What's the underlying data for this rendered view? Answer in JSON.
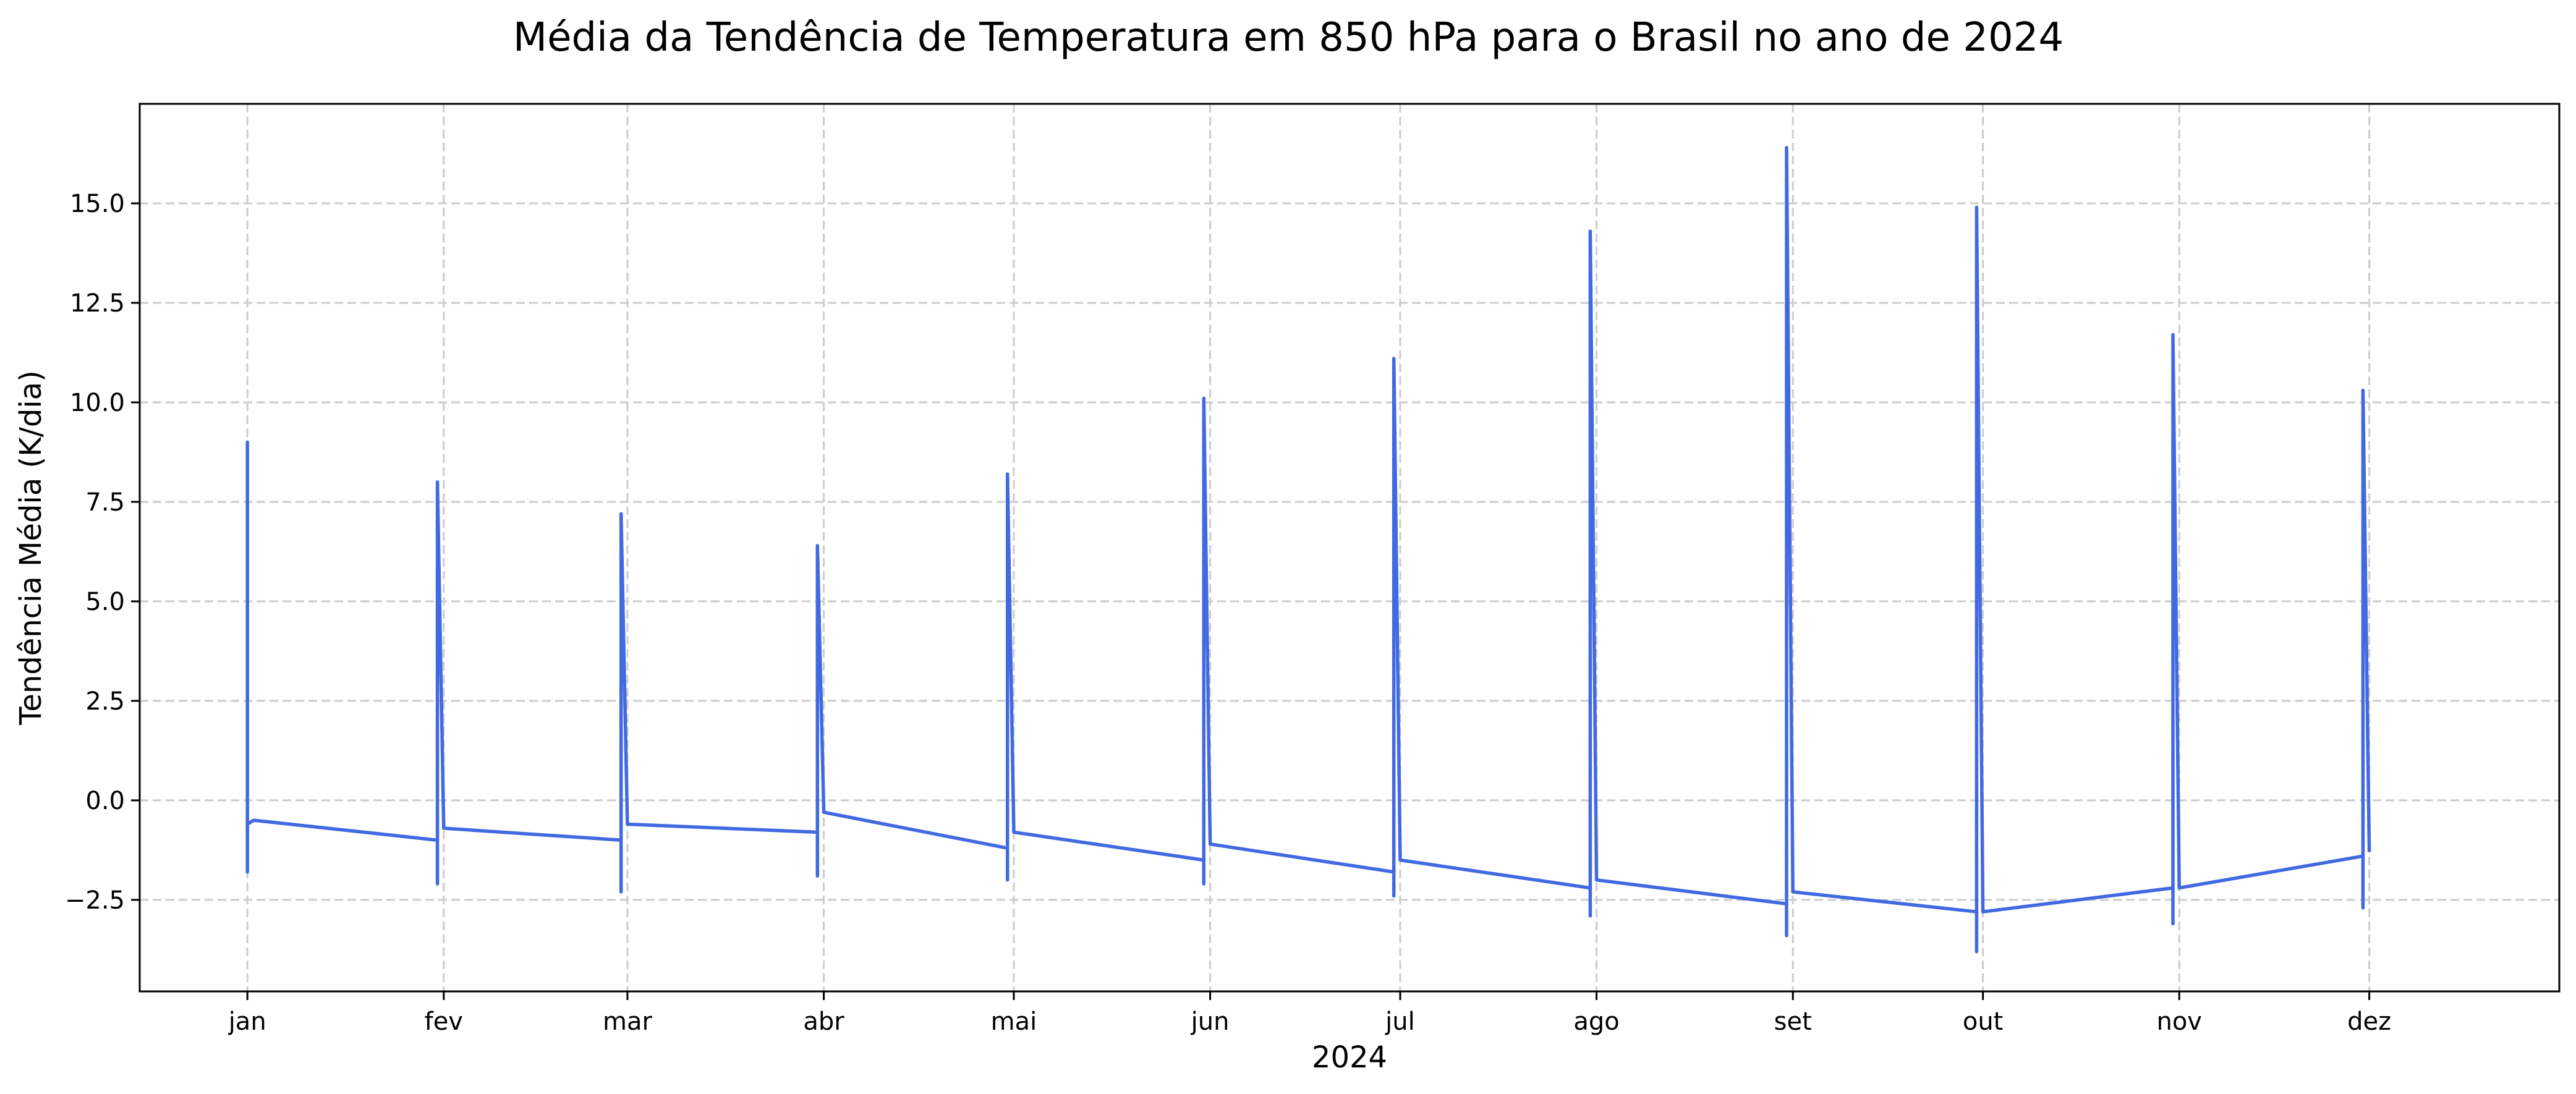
{
  "chart_data": {
    "type": "line",
    "title": "Média da Tendência de Temperatura em 850 hPa para o Brasil no ano de 2024",
    "xlabel": "2024",
    "ylabel": "Tendência Média (K/dia)",
    "xlim": [
      "2023-12-15",
      "2024-12-31"
    ],
    "ylim": [
      -4.8,
      17.5
    ],
    "yticks": [
      -2.5,
      0.0,
      2.5,
      5.0,
      7.5,
      10.0,
      12.5,
      15.0
    ],
    "ytick_labels": [
      "−2.5",
      "0.0",
      "2.5",
      "5.0",
      "7.5",
      "10.0",
      "12.5",
      "15.0"
    ],
    "xticks": [
      "2024-01-01",
      "2024-02-01",
      "2024-03-01",
      "2024-04-01",
      "2024-05-01",
      "2024-06-01",
      "2024-07-01",
      "2024-08-01",
      "2024-09-01",
      "2024-10-01",
      "2024-11-01",
      "2024-12-01"
    ],
    "xtick_labels": [
      "jan",
      "fev",
      "mar",
      "abr",
      "mai",
      "jun",
      "jul",
      "ago",
      "set",
      "out",
      "nov",
      "dez"
    ],
    "grid": true,
    "legend": "none",
    "series": [
      {
        "color": "#4169e1",
        "points": [
          [
            "2024-01-01",
            -0.8
          ],
          [
            "2024-01-01",
            -1.8
          ],
          [
            "2024-01-01",
            9.0
          ],
          [
            "2024-01-01",
            -0.6
          ],
          [
            "2024-01-02",
            -0.5
          ],
          [
            "2024-01-31",
            -1.0
          ],
          [
            "2024-01-31",
            -2.1
          ],
          [
            "2024-01-31",
            8.0
          ],
          [
            "2024-02-01",
            -0.7
          ],
          [
            "2024-02-29",
            -1.0
          ],
          [
            "2024-02-29",
            -2.3
          ],
          [
            "2024-02-29",
            7.2
          ],
          [
            "2024-03-01",
            -0.6
          ],
          [
            "2024-03-31",
            -0.8
          ],
          [
            "2024-03-31",
            -1.9
          ],
          [
            "2024-03-31",
            6.4
          ],
          [
            "2024-04-01",
            -0.3
          ],
          [
            "2024-04-30",
            -1.2
          ],
          [
            "2024-04-30",
            -2.0
          ],
          [
            "2024-04-30",
            8.2
          ],
          [
            "2024-05-01",
            -0.8
          ],
          [
            "2024-05-31",
            -1.5
          ],
          [
            "2024-05-31",
            -2.1
          ],
          [
            "2024-05-31",
            10.1
          ],
          [
            "2024-06-01",
            -1.1
          ],
          [
            "2024-06-30",
            -1.8
          ],
          [
            "2024-06-30",
            -2.4
          ],
          [
            "2024-06-30",
            11.1
          ],
          [
            "2024-07-01",
            -1.5
          ],
          [
            "2024-07-31",
            -2.2
          ],
          [
            "2024-07-31",
            -2.9
          ],
          [
            "2024-07-31",
            14.3
          ],
          [
            "2024-08-01",
            -2.0
          ],
          [
            "2024-08-31",
            -2.6
          ],
          [
            "2024-08-31",
            -3.4
          ],
          [
            "2024-08-31",
            16.4
          ],
          [
            "2024-09-01",
            -2.3
          ],
          [
            "2024-09-30",
            -2.8
          ],
          [
            "2024-09-30",
            -3.8
          ],
          [
            "2024-09-30",
            14.9
          ],
          [
            "2024-10-01",
            -2.8
          ],
          [
            "2024-10-31",
            -2.2
          ],
          [
            "2024-10-31",
            -3.1
          ],
          [
            "2024-10-31",
            11.7
          ],
          [
            "2024-11-01",
            -2.2
          ],
          [
            "2024-11-30",
            -1.4
          ],
          [
            "2024-11-30",
            -2.7
          ],
          [
            "2024-11-30",
            10.3
          ],
          [
            "2024-12-01",
            -1.3
          ]
        ]
      }
    ]
  }
}
